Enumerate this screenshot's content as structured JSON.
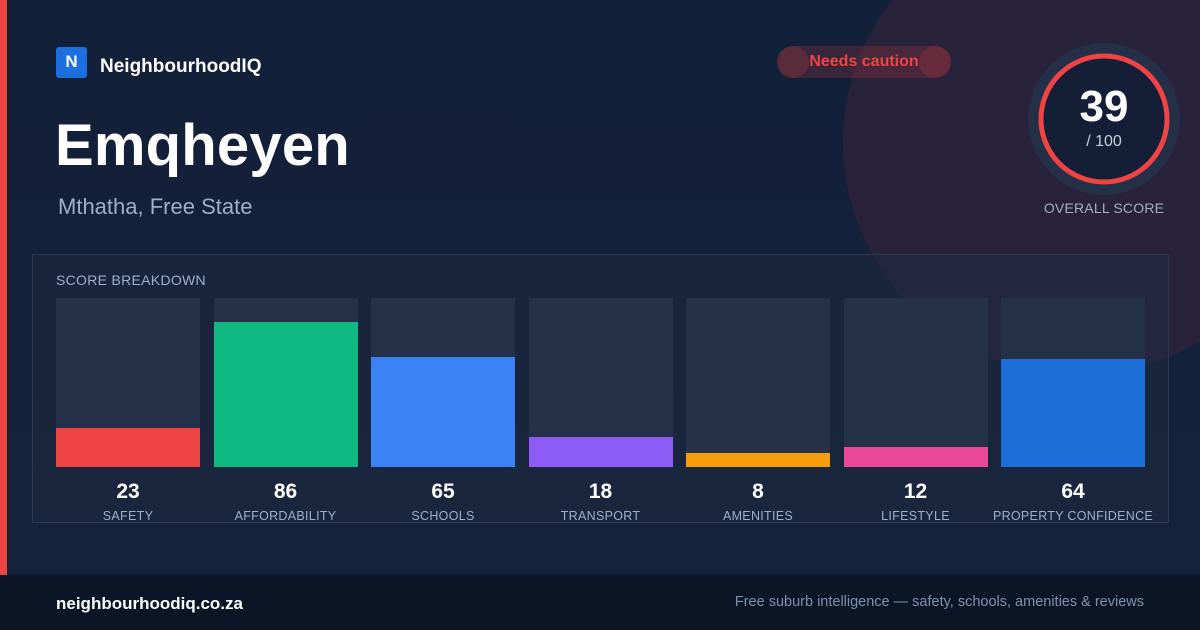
{
  "brand": {
    "logo_letter": "N",
    "name": "NeighbourhoodIQ"
  },
  "suburb": {
    "name": "Emqheyen",
    "location": "Mthatha, Free State"
  },
  "badge": {
    "label": "Needs caution",
    "color": "#ef4444"
  },
  "overall": {
    "score": "39",
    "max_label": "/ 100",
    "caption": "OVERALL SCORE",
    "ring_color": "#ef4444",
    "score_value": 39,
    "max_value": 100
  },
  "breakdown": {
    "title": "SCORE BREAKDOWN"
  },
  "chart_data": {
    "type": "bar",
    "title": "SCORE BREAKDOWN",
    "categories": [
      "SAFETY",
      "AFFORDABILITY",
      "SCHOOLS",
      "TRANSPORT",
      "AMENITIES",
      "LIFESTYLE",
      "PROPERTY CONFIDENCE"
    ],
    "values": [
      23,
      86,
      65,
      18,
      8,
      12,
      64
    ],
    "value_labels": [
      "23",
      "86",
      "65",
      "18",
      "8",
      "12",
      "64"
    ],
    "colors": [
      "#ef4444",
      "#10b981",
      "#3b82f6",
      "#8b5cf6",
      "#f59e0b",
      "#ec4899",
      "#1d6fd8"
    ],
    "ylim": [
      0,
      100
    ],
    "grid": false
  },
  "footer": {
    "domain": "neighbourhoodiq.co.za",
    "tagline": "Free suburb intelligence — safety, schools, amenities & reviews"
  }
}
